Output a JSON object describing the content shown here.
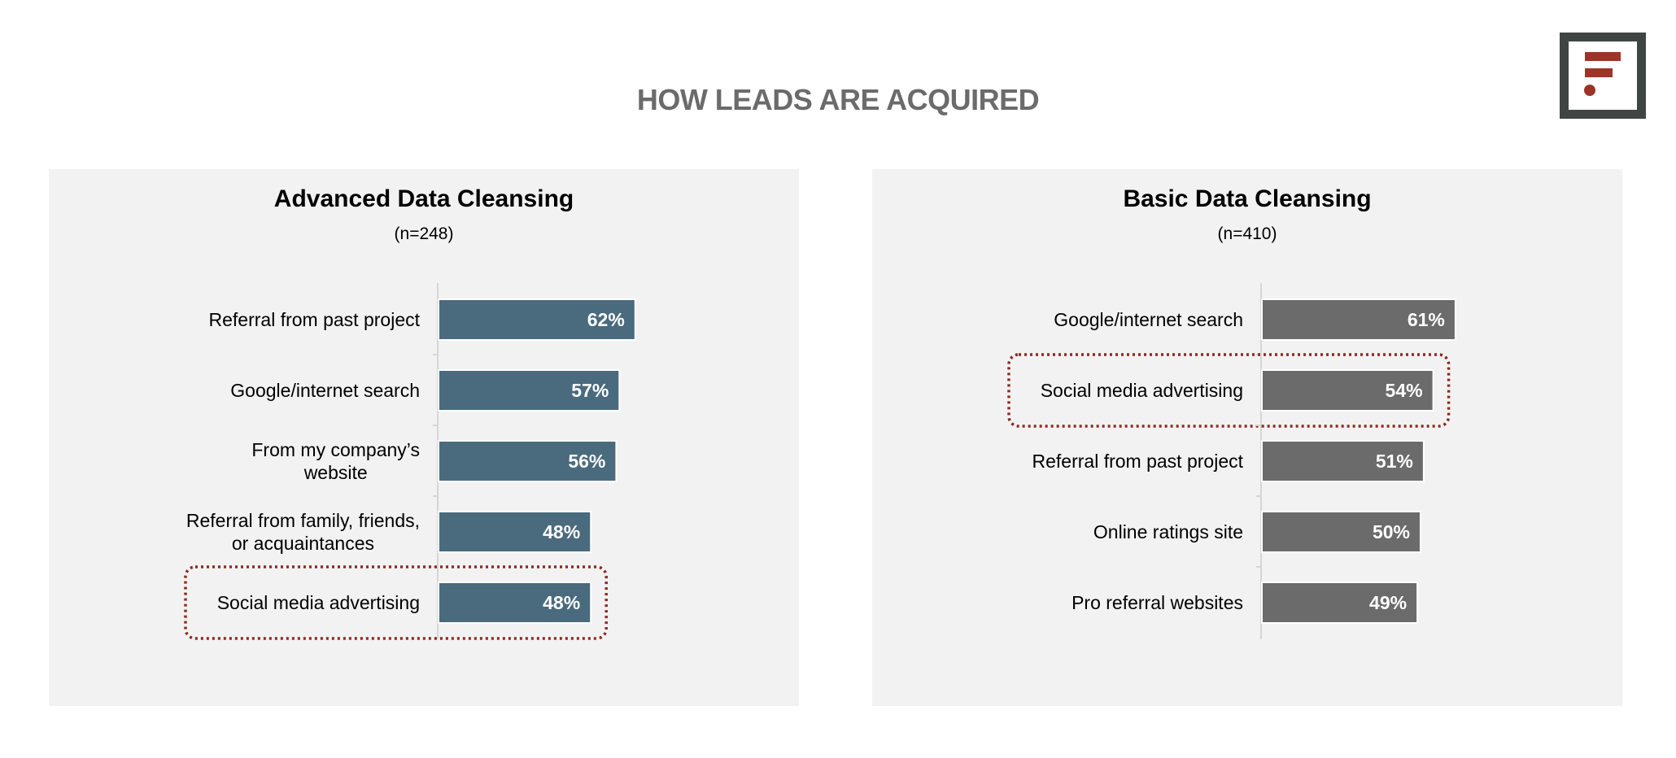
{
  "page": {
    "title": "HOW LEADS ARE ACQUIRED"
  },
  "logo": {
    "icon": "f-logo-icon",
    "colors": {
      "frame": "#3e4543",
      "mark": "#9b3528"
    }
  },
  "chart_data": [
    {
      "type": "bar",
      "orientation": "horizontal",
      "title": "Advanced Data Cleansing",
      "subtitle": "(n=248)",
      "categories": [
        [
          "Referral from past project"
        ],
        [
          "Google/internet search"
        ],
        [
          "From my company’s",
          "website"
        ],
        [
          "Referral from family, friends,",
          "or acquaintances"
        ],
        [
          "Social media advertising"
        ]
      ],
      "values": [
        62,
        57,
        56,
        48,
        48
      ],
      "value_labels": [
        "62%",
        "57%",
        "56%",
        "48%",
        "48%"
      ],
      "highlight_index": 4,
      "bar_color": "#4a6a7e",
      "highlight_color": "#8b2a1f",
      "xlim": [
        0,
        100
      ]
    },
    {
      "type": "bar",
      "orientation": "horizontal",
      "title": "Basic Data Cleansing",
      "subtitle": "(n=410)",
      "categories": [
        [
          "Google/internet search"
        ],
        [
          "Social media advertising"
        ],
        [
          "Referral from past project"
        ],
        [
          "Online ratings site"
        ],
        [
          "Pro referral websites"
        ]
      ],
      "values": [
        61,
        54,
        51,
        50,
        49
      ],
      "value_labels": [
        "61%",
        "54%",
        "51%",
        "50%",
        "49%"
      ],
      "highlight_index": 1,
      "bar_color": "#6b6b6b",
      "highlight_color": "#8b2a1f",
      "xlim": [
        0,
        100
      ]
    }
  ]
}
